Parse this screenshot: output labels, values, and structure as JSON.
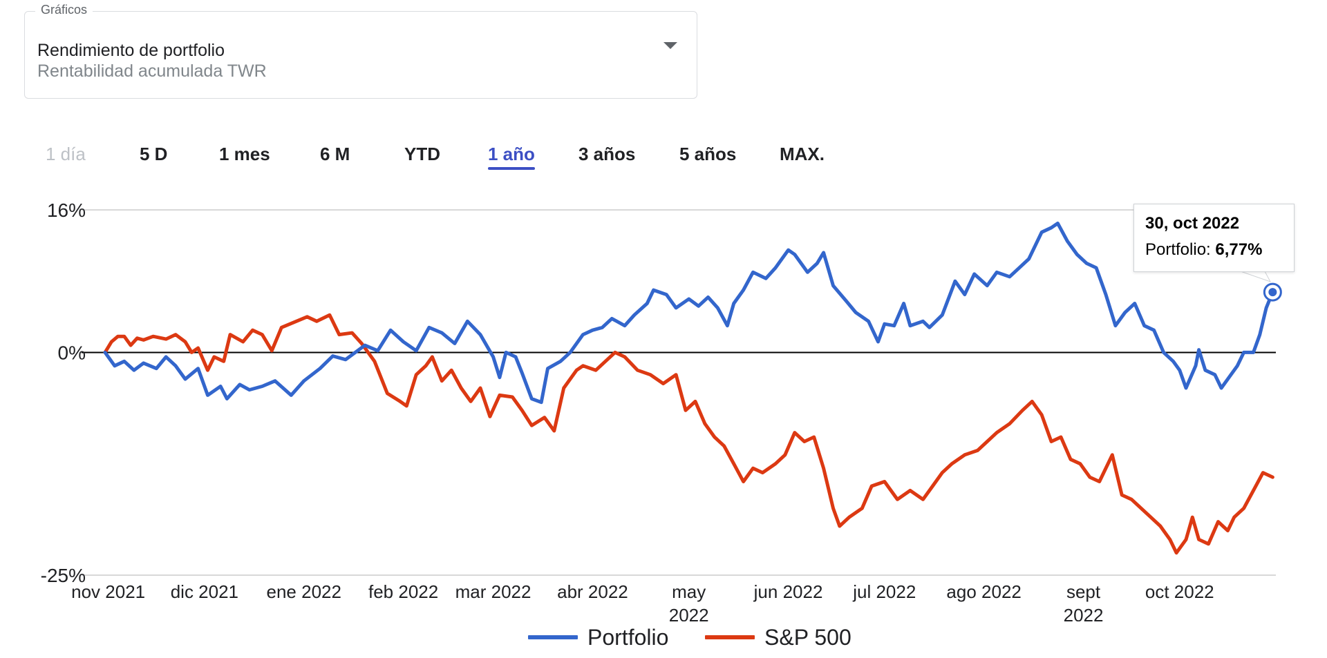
{
  "selector": {
    "label": "Gráficos",
    "title": "Rendimiento de portfolio",
    "subtitle": "Rentabilidad acumulada TWR"
  },
  "range_tabs": [
    "1 día",
    "5 D",
    "1 mes",
    "6 M",
    "YTD",
    "1 año",
    "3 años",
    "5 años",
    "MAX."
  ],
  "range_tab_states": [
    "disabled",
    "",
    "",
    "",
    "",
    "active",
    "",
    "",
    ""
  ],
  "tooltip": {
    "date": "30, oct 2022",
    "series": "Portfolio:",
    "value": "6,77%"
  },
  "legend": {
    "portfolio": "Portfolio",
    "sp500": "S&P 500"
  },
  "colors": {
    "portfolio": "#3366cc",
    "sp500": "#dc3912",
    "active_tab": "#3c4fc4"
  },
  "chart_data": {
    "type": "line",
    "ylim": [
      -25,
      16
    ],
    "y_ticks": [
      16,
      0,
      -25
    ],
    "y_tick_labels": [
      "16%",
      "0%",
      "-25%"
    ],
    "x_range": [
      "2021-10-31",
      "2022-10-31"
    ],
    "x_ticks": [
      {
        "date": "2021-11-01",
        "label": [
          "nov 2021"
        ]
      },
      {
        "date": "2021-12-01",
        "label": [
          "dic 2021"
        ]
      },
      {
        "date": "2022-01-01",
        "label": [
          "ene 2022"
        ]
      },
      {
        "date": "2022-02-01",
        "label": [
          "feb 2022"
        ]
      },
      {
        "date": "2022-03-01",
        "label": [
          "mar 2022"
        ]
      },
      {
        "date": "2022-04-01",
        "label": [
          "abr 2022"
        ]
      },
      {
        "date": "2022-05-01",
        "label": [
          "may",
          "2022"
        ]
      },
      {
        "date": "2022-06-01",
        "label": [
          "jun 2022"
        ]
      },
      {
        "date": "2022-07-01",
        "label": [
          "jul 2022"
        ]
      },
      {
        "date": "2022-08-01",
        "label": [
          "ago 2022"
        ]
      },
      {
        "date": "2022-09-01",
        "label": [
          "sept",
          "2022"
        ]
      },
      {
        "date": "2022-10-01",
        "label": [
          "oct 2022"
        ]
      }
    ],
    "grid": "horizontal",
    "legend_position": "bottom",
    "series": [
      {
        "name": "Portfolio",
        "points": [
          [
            "2021-10-31",
            0.0
          ],
          [
            "2021-11-03",
            -1.5
          ],
          [
            "2021-11-06",
            -1.0
          ],
          [
            "2021-11-09",
            -2.0
          ],
          [
            "2021-11-12",
            -1.2
          ],
          [
            "2021-11-16",
            -1.8
          ],
          [
            "2021-11-19",
            -0.5
          ],
          [
            "2021-11-22",
            -1.5
          ],
          [
            "2021-11-25",
            -3.0
          ],
          [
            "2021-11-29",
            -1.8
          ],
          [
            "2021-12-02",
            -4.8
          ],
          [
            "2021-12-06",
            -3.8
          ],
          [
            "2021-12-08",
            -5.2
          ],
          [
            "2021-12-12",
            -3.6
          ],
          [
            "2021-12-15",
            -4.2
          ],
          [
            "2021-12-19",
            -3.8
          ],
          [
            "2021-12-23",
            -3.2
          ],
          [
            "2021-12-28",
            -4.8
          ],
          [
            "2022-01-01",
            -3.2
          ],
          [
            "2022-01-06",
            -1.8
          ],
          [
            "2022-01-10",
            -0.4
          ],
          [
            "2022-01-14",
            -0.8
          ],
          [
            "2022-01-20",
            0.8
          ],
          [
            "2022-01-24",
            0.2
          ],
          [
            "2022-01-28",
            2.5
          ],
          [
            "2022-02-01",
            1.2
          ],
          [
            "2022-02-05",
            0.2
          ],
          [
            "2022-02-09",
            2.8
          ],
          [
            "2022-02-13",
            2.2
          ],
          [
            "2022-02-17",
            1.0
          ],
          [
            "2022-02-21",
            3.5
          ],
          [
            "2022-02-25",
            2.0
          ],
          [
            "2022-03-01",
            -0.5
          ],
          [
            "2022-03-03",
            -2.8
          ],
          [
            "2022-03-05",
            0.0
          ],
          [
            "2022-03-08",
            -0.5
          ],
          [
            "2022-03-10",
            -2.3
          ],
          [
            "2022-03-13",
            -5.2
          ],
          [
            "2022-03-16",
            -5.6
          ],
          [
            "2022-03-18",
            -1.8
          ],
          [
            "2022-03-22",
            -1.0
          ],
          [
            "2022-03-25",
            0.0
          ],
          [
            "2022-03-29",
            2.0
          ],
          [
            "2022-04-01",
            2.5
          ],
          [
            "2022-04-04",
            2.8
          ],
          [
            "2022-04-07",
            3.8
          ],
          [
            "2022-04-11",
            3.0
          ],
          [
            "2022-04-14",
            4.2
          ],
          [
            "2022-04-18",
            5.5
          ],
          [
            "2022-04-20",
            7.0
          ],
          [
            "2022-04-24",
            6.5
          ],
          [
            "2022-04-27",
            5.0
          ],
          [
            "2022-05-01",
            6.0
          ],
          [
            "2022-05-04",
            5.2
          ],
          [
            "2022-05-07",
            6.2
          ],
          [
            "2022-05-10",
            5.0
          ],
          [
            "2022-05-13",
            3.0
          ],
          [
            "2022-05-15",
            5.5
          ],
          [
            "2022-05-18",
            7.0
          ],
          [
            "2022-05-21",
            9.0
          ],
          [
            "2022-05-25",
            8.3
          ],
          [
            "2022-05-28",
            9.5
          ],
          [
            "2022-06-01",
            11.5
          ],
          [
            "2022-06-03",
            11.0
          ],
          [
            "2022-06-07",
            9.0
          ],
          [
            "2022-06-10",
            10.0
          ],
          [
            "2022-06-12",
            11.2
          ],
          [
            "2022-06-15",
            7.5
          ],
          [
            "2022-06-19",
            5.8
          ],
          [
            "2022-06-22",
            4.5
          ],
          [
            "2022-06-26",
            3.5
          ],
          [
            "2022-06-29",
            1.2
          ],
          [
            "2022-07-01",
            3.2
          ],
          [
            "2022-07-04",
            3.0
          ],
          [
            "2022-07-07",
            5.5
          ],
          [
            "2022-07-09",
            3.0
          ],
          [
            "2022-07-13",
            3.5
          ],
          [
            "2022-07-15",
            2.8
          ],
          [
            "2022-07-19",
            4.2
          ],
          [
            "2022-07-23",
            8.0
          ],
          [
            "2022-07-26",
            6.5
          ],
          [
            "2022-07-29",
            8.8
          ],
          [
            "2022-08-02",
            7.5
          ],
          [
            "2022-08-05",
            9.0
          ],
          [
            "2022-08-09",
            8.5
          ],
          [
            "2022-08-12",
            9.5
          ],
          [
            "2022-08-15",
            10.5
          ],
          [
            "2022-08-19",
            13.5
          ],
          [
            "2022-08-22",
            14.0
          ],
          [
            "2022-08-24",
            14.5
          ],
          [
            "2022-08-27",
            12.5
          ],
          [
            "2022-08-30",
            11.0
          ],
          [
            "2022-09-02",
            10.0
          ],
          [
            "2022-09-05",
            9.5
          ],
          [
            "2022-09-08",
            6.5
          ],
          [
            "2022-09-11",
            3.0
          ],
          [
            "2022-09-14",
            4.5
          ],
          [
            "2022-09-17",
            5.5
          ],
          [
            "2022-09-20",
            3.0
          ],
          [
            "2022-09-23",
            2.5
          ],
          [
            "2022-09-26",
            0.0
          ],
          [
            "2022-09-29",
            -1.0
          ],
          [
            "2022-10-01",
            -2.0
          ],
          [
            "2022-10-03",
            -4.0
          ],
          [
            "2022-10-06",
            -1.5
          ],
          [
            "2022-10-07",
            0.3
          ],
          [
            "2022-10-09",
            -2.0
          ],
          [
            "2022-10-12",
            -2.5
          ],
          [
            "2022-10-14",
            -4.0
          ],
          [
            "2022-10-17",
            -2.5
          ],
          [
            "2022-10-19",
            -1.5
          ],
          [
            "2022-10-21",
            0.0
          ],
          [
            "2022-10-24",
            0.0
          ],
          [
            "2022-10-26",
            2.0
          ],
          [
            "2022-10-28",
            5.0
          ],
          [
            "2022-10-30",
            6.77
          ]
        ]
      },
      {
        "name": "S&P 500",
        "points": [
          [
            "2021-10-31",
            0.0
          ],
          [
            "2021-11-02",
            1.2
          ],
          [
            "2021-11-04",
            1.8
          ],
          [
            "2021-11-06",
            1.8
          ],
          [
            "2021-11-08",
            0.8
          ],
          [
            "2021-11-10",
            1.6
          ],
          [
            "2021-11-12",
            1.4
          ],
          [
            "2021-11-15",
            1.8
          ],
          [
            "2021-11-19",
            1.5
          ],
          [
            "2021-11-22",
            2.0
          ],
          [
            "2021-11-25",
            1.2
          ],
          [
            "2021-11-27",
            0.0
          ],
          [
            "2021-11-29",
            0.5
          ],
          [
            "2021-12-02",
            -2.0
          ],
          [
            "2021-12-04",
            -0.5
          ],
          [
            "2021-12-07",
            -1.0
          ],
          [
            "2021-12-09",
            2.0
          ],
          [
            "2021-12-13",
            1.2
          ],
          [
            "2021-12-16",
            2.5
          ],
          [
            "2021-12-19",
            2.0
          ],
          [
            "2021-12-22",
            0.2
          ],
          [
            "2021-12-25",
            2.8
          ],
          [
            "2022-01-02",
            4.0
          ],
          [
            "2022-01-05",
            3.5
          ],
          [
            "2022-01-09",
            4.2
          ],
          [
            "2022-01-12",
            2.0
          ],
          [
            "2022-01-16",
            2.2
          ],
          [
            "2022-01-19",
            1.0
          ],
          [
            "2022-01-23",
            -1.0
          ],
          [
            "2022-01-27",
            -4.6
          ],
          [
            "2022-01-31",
            -5.5
          ],
          [
            "2022-02-02",
            -6.0
          ],
          [
            "2022-02-05",
            -2.5
          ],
          [
            "2022-02-08",
            -1.5
          ],
          [
            "2022-02-10",
            -0.5
          ],
          [
            "2022-02-13",
            -3.2
          ],
          [
            "2022-02-16",
            -2.0
          ],
          [
            "2022-02-19",
            -4.0
          ],
          [
            "2022-02-22",
            -5.5
          ],
          [
            "2022-02-25",
            -4.0
          ],
          [
            "2022-02-28",
            -7.2
          ],
          [
            "2022-03-03",
            -4.8
          ],
          [
            "2022-03-07",
            -5.0
          ],
          [
            "2022-03-10",
            -6.5
          ],
          [
            "2022-03-13",
            -8.2
          ],
          [
            "2022-03-17",
            -7.3
          ],
          [
            "2022-03-20",
            -8.8
          ],
          [
            "2022-03-23",
            -4.0
          ],
          [
            "2022-03-27",
            -2.0
          ],
          [
            "2022-03-29",
            -1.5
          ],
          [
            "2022-04-02",
            -2.0
          ],
          [
            "2022-04-05",
            -1.0
          ],
          [
            "2022-04-08",
            0.0
          ],
          [
            "2022-04-11",
            -0.5
          ],
          [
            "2022-04-15",
            -2.0
          ],
          [
            "2022-04-19",
            -2.5
          ],
          [
            "2022-04-23",
            -3.5
          ],
          [
            "2022-04-27",
            -2.5
          ],
          [
            "2022-04-30",
            -6.5
          ],
          [
            "2022-05-03",
            -5.5
          ],
          [
            "2022-05-06",
            -8.0
          ],
          [
            "2022-05-09",
            -9.5
          ],
          [
            "2022-05-12",
            -10.5
          ],
          [
            "2022-05-15",
            -12.5
          ],
          [
            "2022-05-18",
            -14.5
          ],
          [
            "2022-05-21",
            -13.0
          ],
          [
            "2022-05-24",
            -13.5
          ],
          [
            "2022-05-28",
            -12.5
          ],
          [
            "2022-05-31",
            -11.5
          ],
          [
            "2022-06-03",
            -9.0
          ],
          [
            "2022-06-06",
            -10.0
          ],
          [
            "2022-06-09",
            -9.5
          ],
          [
            "2022-06-12",
            -13.0
          ],
          [
            "2022-06-15",
            -17.5
          ],
          [
            "2022-06-17",
            -19.5
          ],
          [
            "2022-06-20",
            -18.5
          ],
          [
            "2022-06-24",
            -17.5
          ],
          [
            "2022-06-27",
            -15.0
          ],
          [
            "2022-07-01",
            -14.5
          ],
          [
            "2022-07-05",
            -16.5
          ],
          [
            "2022-07-09",
            -15.5
          ],
          [
            "2022-07-13",
            -16.5
          ],
          [
            "2022-07-16",
            -15.0
          ],
          [
            "2022-07-19",
            -13.5
          ],
          [
            "2022-07-22",
            -12.5
          ],
          [
            "2022-07-26",
            -11.5
          ],
          [
            "2022-07-30",
            -11.0
          ],
          [
            "2022-08-02",
            -10.0
          ],
          [
            "2022-08-05",
            -9.0
          ],
          [
            "2022-08-09",
            -8.0
          ],
          [
            "2022-08-13",
            -6.5
          ],
          [
            "2022-08-16",
            -5.5
          ],
          [
            "2022-08-19",
            -7.0
          ],
          [
            "2022-08-22",
            -10.0
          ],
          [
            "2022-08-25",
            -9.5
          ],
          [
            "2022-08-28",
            -12.0
          ],
          [
            "2022-08-31",
            -12.5
          ],
          [
            "2022-09-03",
            -14.0
          ],
          [
            "2022-09-06",
            -14.5
          ],
          [
            "2022-09-10",
            -11.5
          ],
          [
            "2022-09-13",
            -16.0
          ],
          [
            "2022-09-16",
            -16.5
          ],
          [
            "2022-09-19",
            -17.5
          ],
          [
            "2022-09-22",
            -18.5
          ],
          [
            "2022-09-25",
            -19.5
          ],
          [
            "2022-09-28",
            -21.0
          ],
          [
            "2022-09-30",
            -22.5
          ],
          [
            "2022-10-03",
            -21.0
          ],
          [
            "2022-10-05",
            -18.5
          ],
          [
            "2022-10-07",
            -21.0
          ],
          [
            "2022-10-10",
            -21.5
          ],
          [
            "2022-10-13",
            -19.0
          ],
          [
            "2022-10-16",
            -20.0
          ],
          [
            "2022-10-18",
            -18.5
          ],
          [
            "2022-10-21",
            -17.5
          ],
          [
            "2022-10-24",
            -15.5
          ],
          [
            "2022-10-27",
            -13.5
          ],
          [
            "2022-10-30",
            -14.0
          ]
        ]
      }
    ]
  }
}
